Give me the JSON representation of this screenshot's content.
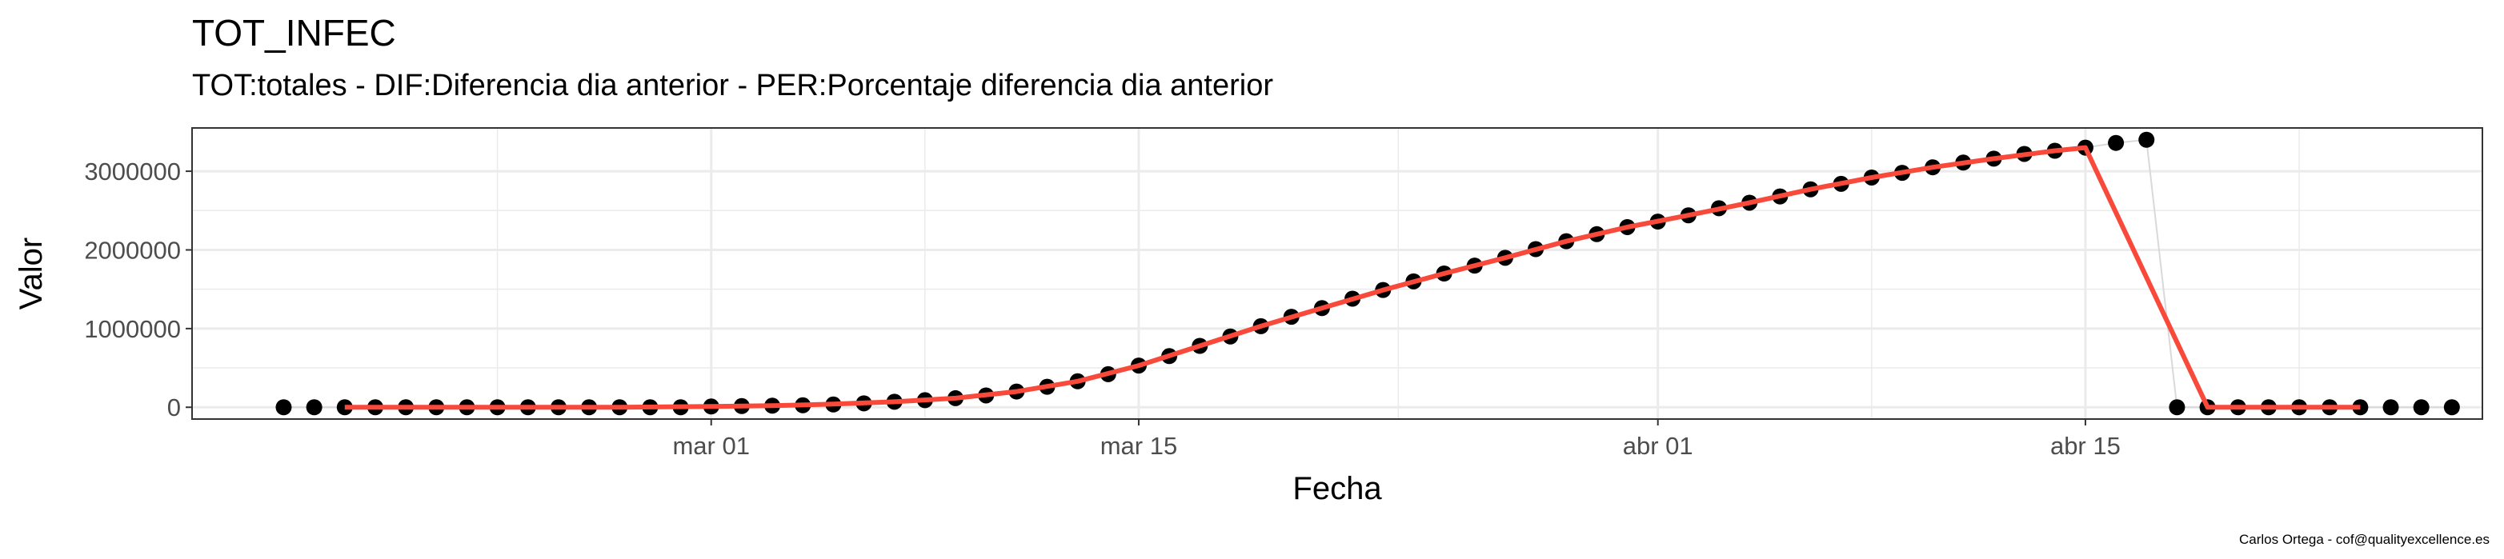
{
  "title": "TOT_INFEC",
  "subtitle": "TOT:totales - DIF:Diferencia dia anterior - PER:Porcentaje diferencia dia anterior",
  "caption": "Carlos Ortega - cof@qualityexcellence.es",
  "colors": {
    "points": "#000000",
    "line": "#F8493A",
    "grid": "#EBEBEB",
    "panel_border": "#333333"
  },
  "chart_data": {
    "type": "scatter",
    "xlabel": "Fecha",
    "ylabel": "Valor",
    "x_tick_labels": [
      {
        "date": "2020-03-01",
        "label": "mar 01"
      },
      {
        "date": "2020-03-15",
        "label": "mar 15"
      },
      {
        "date": "2020-04-01",
        "label": "abr 01"
      },
      {
        "date": "2020-04-15",
        "label": "abr 15"
      }
    ],
    "y_tick_labels": [
      {
        "value": 0,
        "label": "0"
      },
      {
        "value": 1000000,
        "label": "1000000"
      },
      {
        "value": 2000000,
        "label": "2000000"
      },
      {
        "value": 3000000,
        "label": "3000000"
      }
    ],
    "xlim": [
      "2020-02-13",
      "2020-04-28"
    ],
    "ylim": [
      -150000,
      3550000
    ],
    "grid": true,
    "legend": "none",
    "points": [
      {
        "x": "2020-02-16",
        "y": 0
      },
      {
        "x": "2020-02-17",
        "y": 0
      },
      {
        "x": "2020-02-18",
        "y": 0
      },
      {
        "x": "2020-02-19",
        "y": 0
      },
      {
        "x": "2020-02-20",
        "y": 0
      },
      {
        "x": "2020-02-21",
        "y": 0
      },
      {
        "x": "2020-02-22",
        "y": 0
      },
      {
        "x": "2020-02-23",
        "y": 0
      },
      {
        "x": "2020-02-24",
        "y": 0
      },
      {
        "x": "2020-02-25",
        "y": 0
      },
      {
        "x": "2020-02-26",
        "y": 0
      },
      {
        "x": "2020-02-27",
        "y": 0
      },
      {
        "x": "2020-02-28",
        "y": 0
      },
      {
        "x": "2020-02-29",
        "y": 0
      },
      {
        "x": "2020-03-01",
        "y": 10000
      },
      {
        "x": "2020-03-02",
        "y": 15000
      },
      {
        "x": "2020-03-03",
        "y": 20000
      },
      {
        "x": "2020-03-04",
        "y": 25000
      },
      {
        "x": "2020-03-05",
        "y": 35000
      },
      {
        "x": "2020-03-06",
        "y": 50000
      },
      {
        "x": "2020-03-07",
        "y": 70000
      },
      {
        "x": "2020-03-08",
        "y": 90000
      },
      {
        "x": "2020-03-09",
        "y": 115000
      },
      {
        "x": "2020-03-10",
        "y": 150000
      },
      {
        "x": "2020-03-11",
        "y": 200000
      },
      {
        "x": "2020-03-12",
        "y": 260000
      },
      {
        "x": "2020-03-13",
        "y": 330000
      },
      {
        "x": "2020-03-14",
        "y": 420000
      },
      {
        "x": "2020-03-15",
        "y": 530000
      },
      {
        "x": "2020-03-16",
        "y": 650000
      },
      {
        "x": "2020-03-17",
        "y": 780000
      },
      {
        "x": "2020-03-18",
        "y": 900000
      },
      {
        "x": "2020-03-19",
        "y": 1030000
      },
      {
        "x": "2020-03-20",
        "y": 1150000
      },
      {
        "x": "2020-03-21",
        "y": 1260000
      },
      {
        "x": "2020-03-22",
        "y": 1380000
      },
      {
        "x": "2020-03-23",
        "y": 1490000
      },
      {
        "x": "2020-03-24",
        "y": 1600000
      },
      {
        "x": "2020-03-25",
        "y": 1700000
      },
      {
        "x": "2020-03-26",
        "y": 1800000
      },
      {
        "x": "2020-03-27",
        "y": 1900000
      },
      {
        "x": "2020-03-28",
        "y": 2010000
      },
      {
        "x": "2020-03-29",
        "y": 2110000
      },
      {
        "x": "2020-03-30",
        "y": 2200000
      },
      {
        "x": "2020-03-31",
        "y": 2290000
      },
      {
        "x": "2020-04-01",
        "y": 2360000
      },
      {
        "x": "2020-04-02",
        "y": 2440000
      },
      {
        "x": "2020-04-03",
        "y": 2530000
      },
      {
        "x": "2020-04-04",
        "y": 2600000
      },
      {
        "x": "2020-04-05",
        "y": 2680000
      },
      {
        "x": "2020-04-06",
        "y": 2770000
      },
      {
        "x": "2020-04-07",
        "y": 2840000
      },
      {
        "x": "2020-04-08",
        "y": 2920000
      },
      {
        "x": "2020-04-09",
        "y": 2980000
      },
      {
        "x": "2020-04-10",
        "y": 3050000
      },
      {
        "x": "2020-04-11",
        "y": 3110000
      },
      {
        "x": "2020-04-12",
        "y": 3160000
      },
      {
        "x": "2020-04-13",
        "y": 3220000
      },
      {
        "x": "2020-04-14",
        "y": 3260000
      },
      {
        "x": "2020-04-15",
        "y": 3300000
      },
      {
        "x": "2020-04-16",
        "y": 3360000
      },
      {
        "x": "2020-04-17",
        "y": 3400000
      },
      {
        "x": "2020-04-18",
        "y": 0
      },
      {
        "x": "2020-04-19",
        "y": 0
      },
      {
        "x": "2020-04-20",
        "y": 0
      },
      {
        "x": "2020-04-21",
        "y": 0
      },
      {
        "x": "2020-04-22",
        "y": 0
      },
      {
        "x": "2020-04-23",
        "y": 0
      },
      {
        "x": "2020-04-24",
        "y": 0
      },
      {
        "x": "2020-04-25",
        "y": 0
      },
      {
        "x": "2020-04-26",
        "y": 0
      },
      {
        "x": "2020-04-27",
        "y": 0
      }
    ],
    "trend_line": [
      {
        "x": "2020-02-18",
        "y": 0
      },
      {
        "x": "2020-02-21",
        "y": 0
      },
      {
        "x": "2020-02-24",
        "y": 0
      },
      {
        "x": "2020-02-27",
        "y": 0
      },
      {
        "x": "2020-03-01",
        "y": 10000
      },
      {
        "x": "2020-03-03",
        "y": 20000
      },
      {
        "x": "2020-03-05",
        "y": 40000
      },
      {
        "x": "2020-03-07",
        "y": 70000
      },
      {
        "x": "2020-03-09",
        "y": 115000
      },
      {
        "x": "2020-03-11",
        "y": 200000
      },
      {
        "x": "2020-03-13",
        "y": 330000
      },
      {
        "x": "2020-03-15",
        "y": 530000
      },
      {
        "x": "2020-03-17",
        "y": 780000
      },
      {
        "x": "2020-03-19",
        "y": 1030000
      },
      {
        "x": "2020-03-21",
        "y": 1260000
      },
      {
        "x": "2020-03-23",
        "y": 1490000
      },
      {
        "x": "2020-03-25",
        "y": 1700000
      },
      {
        "x": "2020-03-27",
        "y": 1900000
      },
      {
        "x": "2020-03-29",
        "y": 2110000
      },
      {
        "x": "2020-03-31",
        "y": 2290000
      },
      {
        "x": "2020-04-02",
        "y": 2440000
      },
      {
        "x": "2020-04-04",
        "y": 2600000
      },
      {
        "x": "2020-04-06",
        "y": 2770000
      },
      {
        "x": "2020-04-08",
        "y": 2920000
      },
      {
        "x": "2020-04-10",
        "y": 3050000
      },
      {
        "x": "2020-04-12",
        "y": 3160000
      },
      {
        "x": "2020-04-14",
        "y": 3260000
      },
      {
        "x": "2020-04-15",
        "y": 3300000
      },
      {
        "x": "2020-04-19",
        "y": 0
      },
      {
        "x": "2020-04-21",
        "y": 0
      },
      {
        "x": "2020-04-23",
        "y": 0
      },
      {
        "x": "2020-04-24",
        "y": 0
      }
    ]
  }
}
